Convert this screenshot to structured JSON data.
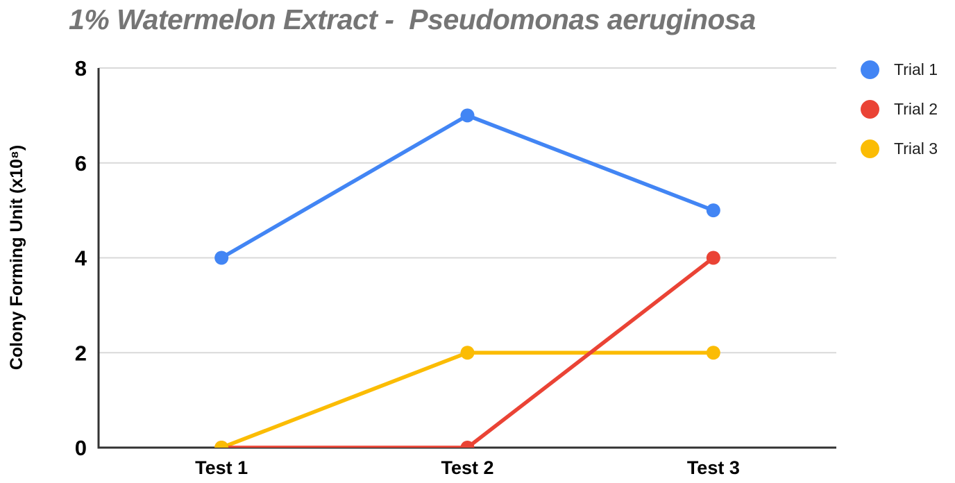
{
  "page": {
    "background": "#ffffff"
  },
  "chart_data": {
    "type": "line",
    "title": "1% Watermelon Extract -  Pseudomonas aeruginosa",
    "title_color": "#757575",
    "categories": [
      "Test 1",
      "Test 2",
      "Test 3"
    ],
    "series": [
      {
        "name": "Trial 1",
        "color": "#4285F4",
        "values": [
          4,
          7,
          5
        ]
      },
      {
        "name": "Trial 2",
        "color": "#EA4335",
        "values": [
          0,
          0,
          4
        ]
      },
      {
        "name": "Trial 3",
        "color": "#FBBC04",
        "values": [
          0,
          2,
          2
        ]
      }
    ],
    "xlabel": "",
    "ylabel": "Colony Forming Unit (x10⁸)",
    "ylim": [
      0,
      8
    ],
    "yticks": [
      0,
      2,
      4,
      6,
      8
    ],
    "grid": true,
    "legend_position": "right",
    "colors": {
      "gridline": "#d9d9d9",
      "axis": "#333333",
      "tick_label": "#000000",
      "category_label": "#000000",
      "legend_text": "#1f1f1f"
    }
  }
}
